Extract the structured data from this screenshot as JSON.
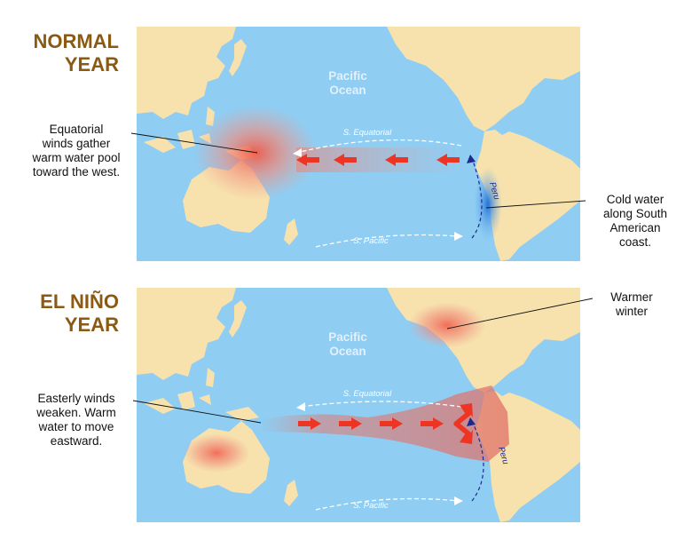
{
  "panels": [
    {
      "heading": [
        "NORMAL",
        "YEAR"
      ],
      "ocean_label": [
        "Pacific",
        "Ocean"
      ],
      "current_top": "S. Equatorial",
      "current_bottom": "S. Pacific",
      "coast_label": "Peru",
      "callout_left": [
        "Equatorial",
        "winds gather",
        "warm water pool",
        "toward the west."
      ],
      "callout_right": [
        "Cold water",
        "along South",
        "American",
        "coast."
      ]
    },
    {
      "heading": [
        "EL NIÑO",
        "YEAR"
      ],
      "ocean_label": [
        "Pacific",
        "Ocean"
      ],
      "current_top": "S. Equatorial",
      "current_bottom": "S. Pacific",
      "coast_label": "Peru",
      "callout_left": [
        "Easterly winds",
        "weaken. Warm",
        "water to move",
        "eastward."
      ],
      "callout_right": [
        "Warmer",
        "winter"
      ]
    }
  ],
  "colors": {
    "ocean": "#8fcdf3",
    "land": "#f7e2ad",
    "warm": "#f05a4a",
    "cold": "#2f86e0",
    "arrow": "#ee3524",
    "heading": "#8a5a14"
  }
}
